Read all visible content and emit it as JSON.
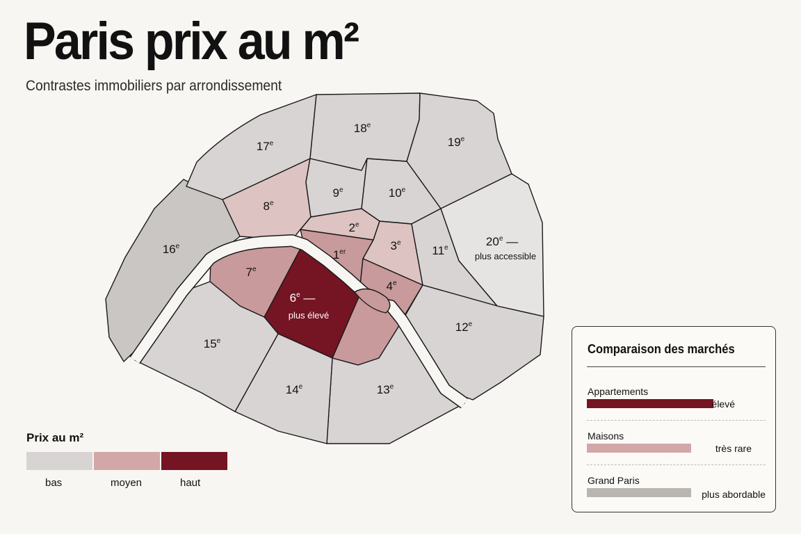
{
  "title": "Paris prix au m²",
  "subtitle": "Contrastes immobiliers par arrondissement",
  "colors": {
    "bas": "#d9d4d4",
    "moyen": "#d2a7a8",
    "moyen_light": "#ddc3c2",
    "moyen_mid": "#c99a9b",
    "haut": "#751423",
    "grand_paris": "#b9b6b2",
    "river": "#f8f6f2",
    "stroke": "#1a1a1a"
  },
  "districts": [
    {
      "id": "1",
      "num": "1",
      "sup": "er",
      "level": "moyen_mid"
    },
    {
      "id": "2",
      "num": "2",
      "sup": "e",
      "level": "moyen_light"
    },
    {
      "id": "3",
      "num": "3",
      "sup": "e",
      "level": "moyen_light"
    },
    {
      "id": "4",
      "num": "4",
      "sup": "e",
      "level": "moyen_mid"
    },
    {
      "id": "5",
      "num": "",
      "sup": "",
      "level": "moyen_mid"
    },
    {
      "id": "6",
      "num": "6",
      "sup": "e",
      "suffix": " —",
      "sub": "plus élevé",
      "level": "haut"
    },
    {
      "id": "7",
      "num": "7",
      "sup": "e",
      "level": "moyen_mid"
    },
    {
      "id": "8",
      "num": "8",
      "sup": "e",
      "level": "moyen_light"
    },
    {
      "id": "9",
      "num": "9",
      "sup": "e",
      "level": "bas"
    },
    {
      "id": "10",
      "num": "10",
      "sup": "e",
      "level": "bas"
    },
    {
      "id": "11",
      "num": "11",
      "sup": "e",
      "level": "bas"
    },
    {
      "id": "12",
      "num": "12",
      "sup": "e",
      "level": "bas"
    },
    {
      "id": "13",
      "num": "13",
      "sup": "e",
      "level": "bas"
    },
    {
      "id": "14",
      "num": "14",
      "sup": "e",
      "level": "bas"
    },
    {
      "id": "15",
      "num": "15",
      "sup": "e",
      "level": "bas"
    },
    {
      "id": "16",
      "num": "16",
      "sup": "e",
      "level": "dark_bas"
    },
    {
      "id": "17",
      "num": "17",
      "sup": "e",
      "level": "bas"
    },
    {
      "id": "18",
      "num": "18",
      "sup": "e",
      "level": "bas"
    },
    {
      "id": "19",
      "num": "19",
      "sup": "e",
      "level": "bas"
    },
    {
      "id": "20",
      "num": "20",
      "sup": "e",
      "suffix": " —",
      "sub": "plus accessible",
      "level": "light_bas"
    }
  ],
  "legend": {
    "title": "Prix au m²",
    "items": [
      {
        "label": "bas",
        "color": "#d9d4d4"
      },
      {
        "label": "moyen",
        "color": "#d2a7a8"
      },
      {
        "label": "haut",
        "color": "#751423"
      }
    ]
  },
  "comparison": {
    "title": "Comparaison des marchés",
    "rows": [
      {
        "label": "Appartements",
        "value": "élevé",
        "level": 0.8,
        "color": "#751423"
      },
      {
        "label": "Maisons",
        "value": "très rare",
        "level": 0.66,
        "color": "#d2a7a8"
      },
      {
        "label": "Grand Paris",
        "value": "plus abordable",
        "level": 0.66,
        "color": "#b9b6b2"
      }
    ]
  }
}
